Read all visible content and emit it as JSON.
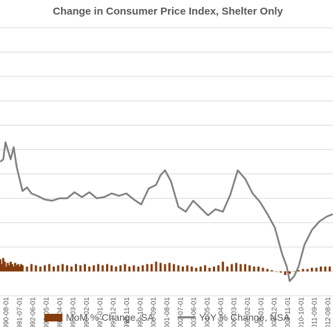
{
  "chart_data": {
    "type": "bar+line",
    "title": "Change in Consumer Price Index, Shelter Only",
    "xlabel": "",
    "ylabel": "",
    "grid": true,
    "legend_position": "bottom",
    "colors": {
      "bar": "#843c0c",
      "line": "#7f7f7f",
      "grid": "#d9d9d9"
    },
    "x_tick_labels": [
      "1990-08-01",
      "1991-07-01",
      "1992-06-01",
      "1993-05-01",
      "1994-04-01",
      "1995-03-01",
      "1996-02-01",
      "1997-01-01",
      "1997-12-01",
      "1998-11-01",
      "1999-10-01",
      "2000-09-01",
      "2001-08-01",
      "2002-07-01",
      "2003-06-01",
      "2004-05-01",
      "2005-04-01",
      "2006-03-01",
      "2007-02-01",
      "2008-01-01",
      "2008-12-01",
      "2009-11-01",
      "2010-10-01",
      "2011-09-01",
      "2012-08-01"
    ],
    "series": [
      {
        "name": "MoM % Change, SA",
        "type": "bar",
        "x": [
          1990.5,
          1990.6,
          1990.7,
          1990.8,
          1990.9,
          1991.0,
          1991.1,
          1991.2,
          1991.3,
          1991.4,
          1991.5,
          1991.6,
          1991.7,
          1991.8,
          1991.9,
          1992.0,
          1992.3,
          1992.6,
          1992.9,
          1993.2,
          1993.5,
          1993.8,
          1994.1,
          1994.4,
          1994.7,
          1995.0,
          1995.3,
          1995.6,
          1995.9,
          1996.2,
          1996.5,
          1996.8,
          1997.1,
          1997.4,
          1997.7,
          1998.0,
          1998.3,
          1998.6,
          1998.9,
          1999.2,
          1999.5,
          1999.8,
          2000.1,
          2000.4,
          2000.7,
          2001.0,
          2001.3,
          2001.6,
          2001.9,
          2002.2,
          2002.5,
          2002.8,
          2003.1,
          2003.4,
          2003.7,
          2004.0,
          2004.3,
          2004.6,
          2004.9,
          2005.2,
          2005.5,
          2005.8,
          2006.1,
          2006.4,
          2006.7,
          2007.0,
          2007.3,
          2007.6,
          2007.9,
          2008.2,
          2008.5,
          2008.8,
          2009.1,
          2009.4,
          2009.7,
          2010.0,
          2010.3,
          2010.6,
          2010.9,
          2011.2,
          2011.5,
          2011.8,
          2012.1,
          2012.4,
          2012.7
        ],
        "values": [
          0.5,
          0.3,
          0.55,
          0.4,
          0.2,
          0.35,
          0.25,
          0.4,
          0.3,
          0.2,
          0.35,
          0.25,
          0.3,
          0.2,
          0.3,
          0.25,
          0.2,
          0.3,
          0.25,
          0.2,
          0.25,
          0.3,
          0.2,
          0.25,
          0.3,
          0.25,
          0.2,
          0.3,
          0.25,
          0.3,
          0.2,
          0.25,
          0.3,
          0.25,
          0.3,
          0.25,
          0.2,
          0.25,
          0.3,
          0.2,
          0.25,
          0.2,
          0.25,
          0.3,
          0.3,
          0.4,
          0.35,
          0.3,
          0.35,
          0.3,
          0.25,
          0.2,
          0.25,
          0.2,
          0.15,
          0.2,
          0.25,
          0.15,
          0.2,
          0.25,
          0.4,
          0.2,
          0.3,
          0.35,
          0.3,
          0.3,
          0.25,
          0.2,
          0.2,
          0.15,
          0.1,
          0.05,
          0.0,
          -0.05,
          -0.15,
          -0.1,
          0.0,
          0.05,
          0.1,
          0.1,
          0.15,
          0.15,
          0.2,
          0.2,
          0.2
        ]
      },
      {
        "name": "YoY % Change, NSA",
        "type": "line",
        "x": [
          1990.5,
          1990.7,
          1990.85,
          1991.0,
          1991.2,
          1991.4,
          1991.6,
          1991.8,
          1992.0,
          1992.3,
          1992.6,
          1993.0,
          1993.5,
          1994.0,
          1994.5,
          1995.0,
          1995.5,
          1996.0,
          1996.5,
          1997.0,
          1997.5,
          1998.0,
          1998.5,
          1999.0,
          1999.5,
          2000.0,
          2000.5,
          2001.0,
          2001.3,
          2001.6,
          2002.0,
          2002.5,
          2003.0,
          2003.5,
          2004.0,
          2004.5,
          2005.0,
          2005.5,
          2006.0,
          2006.5,
          2007.0,
          2007.5,
          2008.0,
          2008.5,
          2009.0,
          2009.5,
          2009.8,
          2010.0,
          2010.3,
          2010.6,
          2011.0,
          2011.5,
          2012.0,
          2012.5,
          2012.9
        ],
        "values": [
          4.5,
          4.6,
          5.3,
          5.0,
          4.6,
          5.1,
          4.3,
          3.8,
          3.3,
          3.45,
          3.2,
          3.1,
          2.95,
          2.9,
          3.0,
          3.0,
          3.25,
          3.05,
          3.25,
          3.0,
          3.05,
          3.2,
          3.1,
          3.2,
          2.95,
          2.75,
          3.4,
          3.55,
          3.95,
          4.15,
          3.7,
          2.65,
          2.45,
          2.9,
          2.6,
          2.3,
          2.55,
          2.45,
          3.15,
          4.15,
          3.8,
          3.2,
          2.85,
          2.35,
          1.8,
          0.7,
          0.2,
          -0.4,
          -0.2,
          0.2,
          1.1,
          1.7,
          2.05,
          2.25,
          2.35
        ]
      }
    ],
    "x_range": [
      1990.48,
      2012.92
    ],
    "y_range": [
      -1.0,
      10.0
    ]
  }
}
